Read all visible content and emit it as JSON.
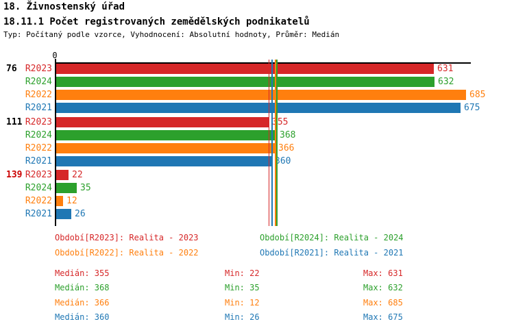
{
  "header": {
    "title": "18. Živnostenský úřad",
    "subtitle": "18.11.1 Počet registrovaných zemědělských podnikatelů",
    "meta": "Typ: Počítaný podle vzorce, Vyhodnocení: Absolutní hodnoty, Průměr: Medián"
  },
  "colors": {
    "series": {
      "R2023": "#d62728",
      "R2024": "#2ca02c",
      "R2022": "#ff7f0e",
      "R2021": "#1f77b4"
    },
    "axis": "#000000",
    "group_label_normal": "#000000",
    "group_label_highlight": "#cc0000"
  },
  "chart_data": {
    "type": "bar",
    "orientation": "horizontal",
    "axis_origin_label": "0",
    "xlim": [
      0,
      692
    ],
    "series_order": [
      "R2023",
      "R2024",
      "R2022",
      "R2021"
    ],
    "groups": [
      {
        "label": "76",
        "highlighted": false,
        "values": {
          "R2023": 631,
          "R2024": 632,
          "R2022": 685,
          "R2021": 675
        }
      },
      {
        "label": "111",
        "highlighted": false,
        "values": {
          "R2023": 355,
          "R2024": 368,
          "R2022": 366,
          "R2021": 360
        }
      },
      {
        "label": "139",
        "highlighted": true,
        "values": {
          "R2023": 22,
          "R2024": 35,
          "R2022": 12,
          "R2021": 26
        }
      }
    ],
    "median_lines": {
      "R2023": 355,
      "R2024": 368,
      "R2022": 366,
      "R2021": 360
    }
  },
  "legend": [
    {
      "series": "R2023",
      "label": "Období[R2023]: Realita - 2023"
    },
    {
      "series": "R2024",
      "label": "Období[R2024]: Realita - 2024"
    },
    {
      "series": "R2022",
      "label": "Období[R2022]: Realita - 2022"
    },
    {
      "series": "R2021",
      "label": "Období[R2021]: Realita - 2021"
    }
  ],
  "stats_labels": {
    "median": "Medián",
    "min": "Min",
    "max": "Max"
  },
  "stats": [
    {
      "series": "R2023",
      "median": 355,
      "min": 22,
      "max": 631
    },
    {
      "series": "R2024",
      "median": 368,
      "min": 35,
      "max": 632
    },
    {
      "series": "R2022",
      "median": 366,
      "min": 12,
      "max": 685
    },
    {
      "series": "R2021",
      "median": 360,
      "min": 26,
      "max": 675
    }
  ]
}
